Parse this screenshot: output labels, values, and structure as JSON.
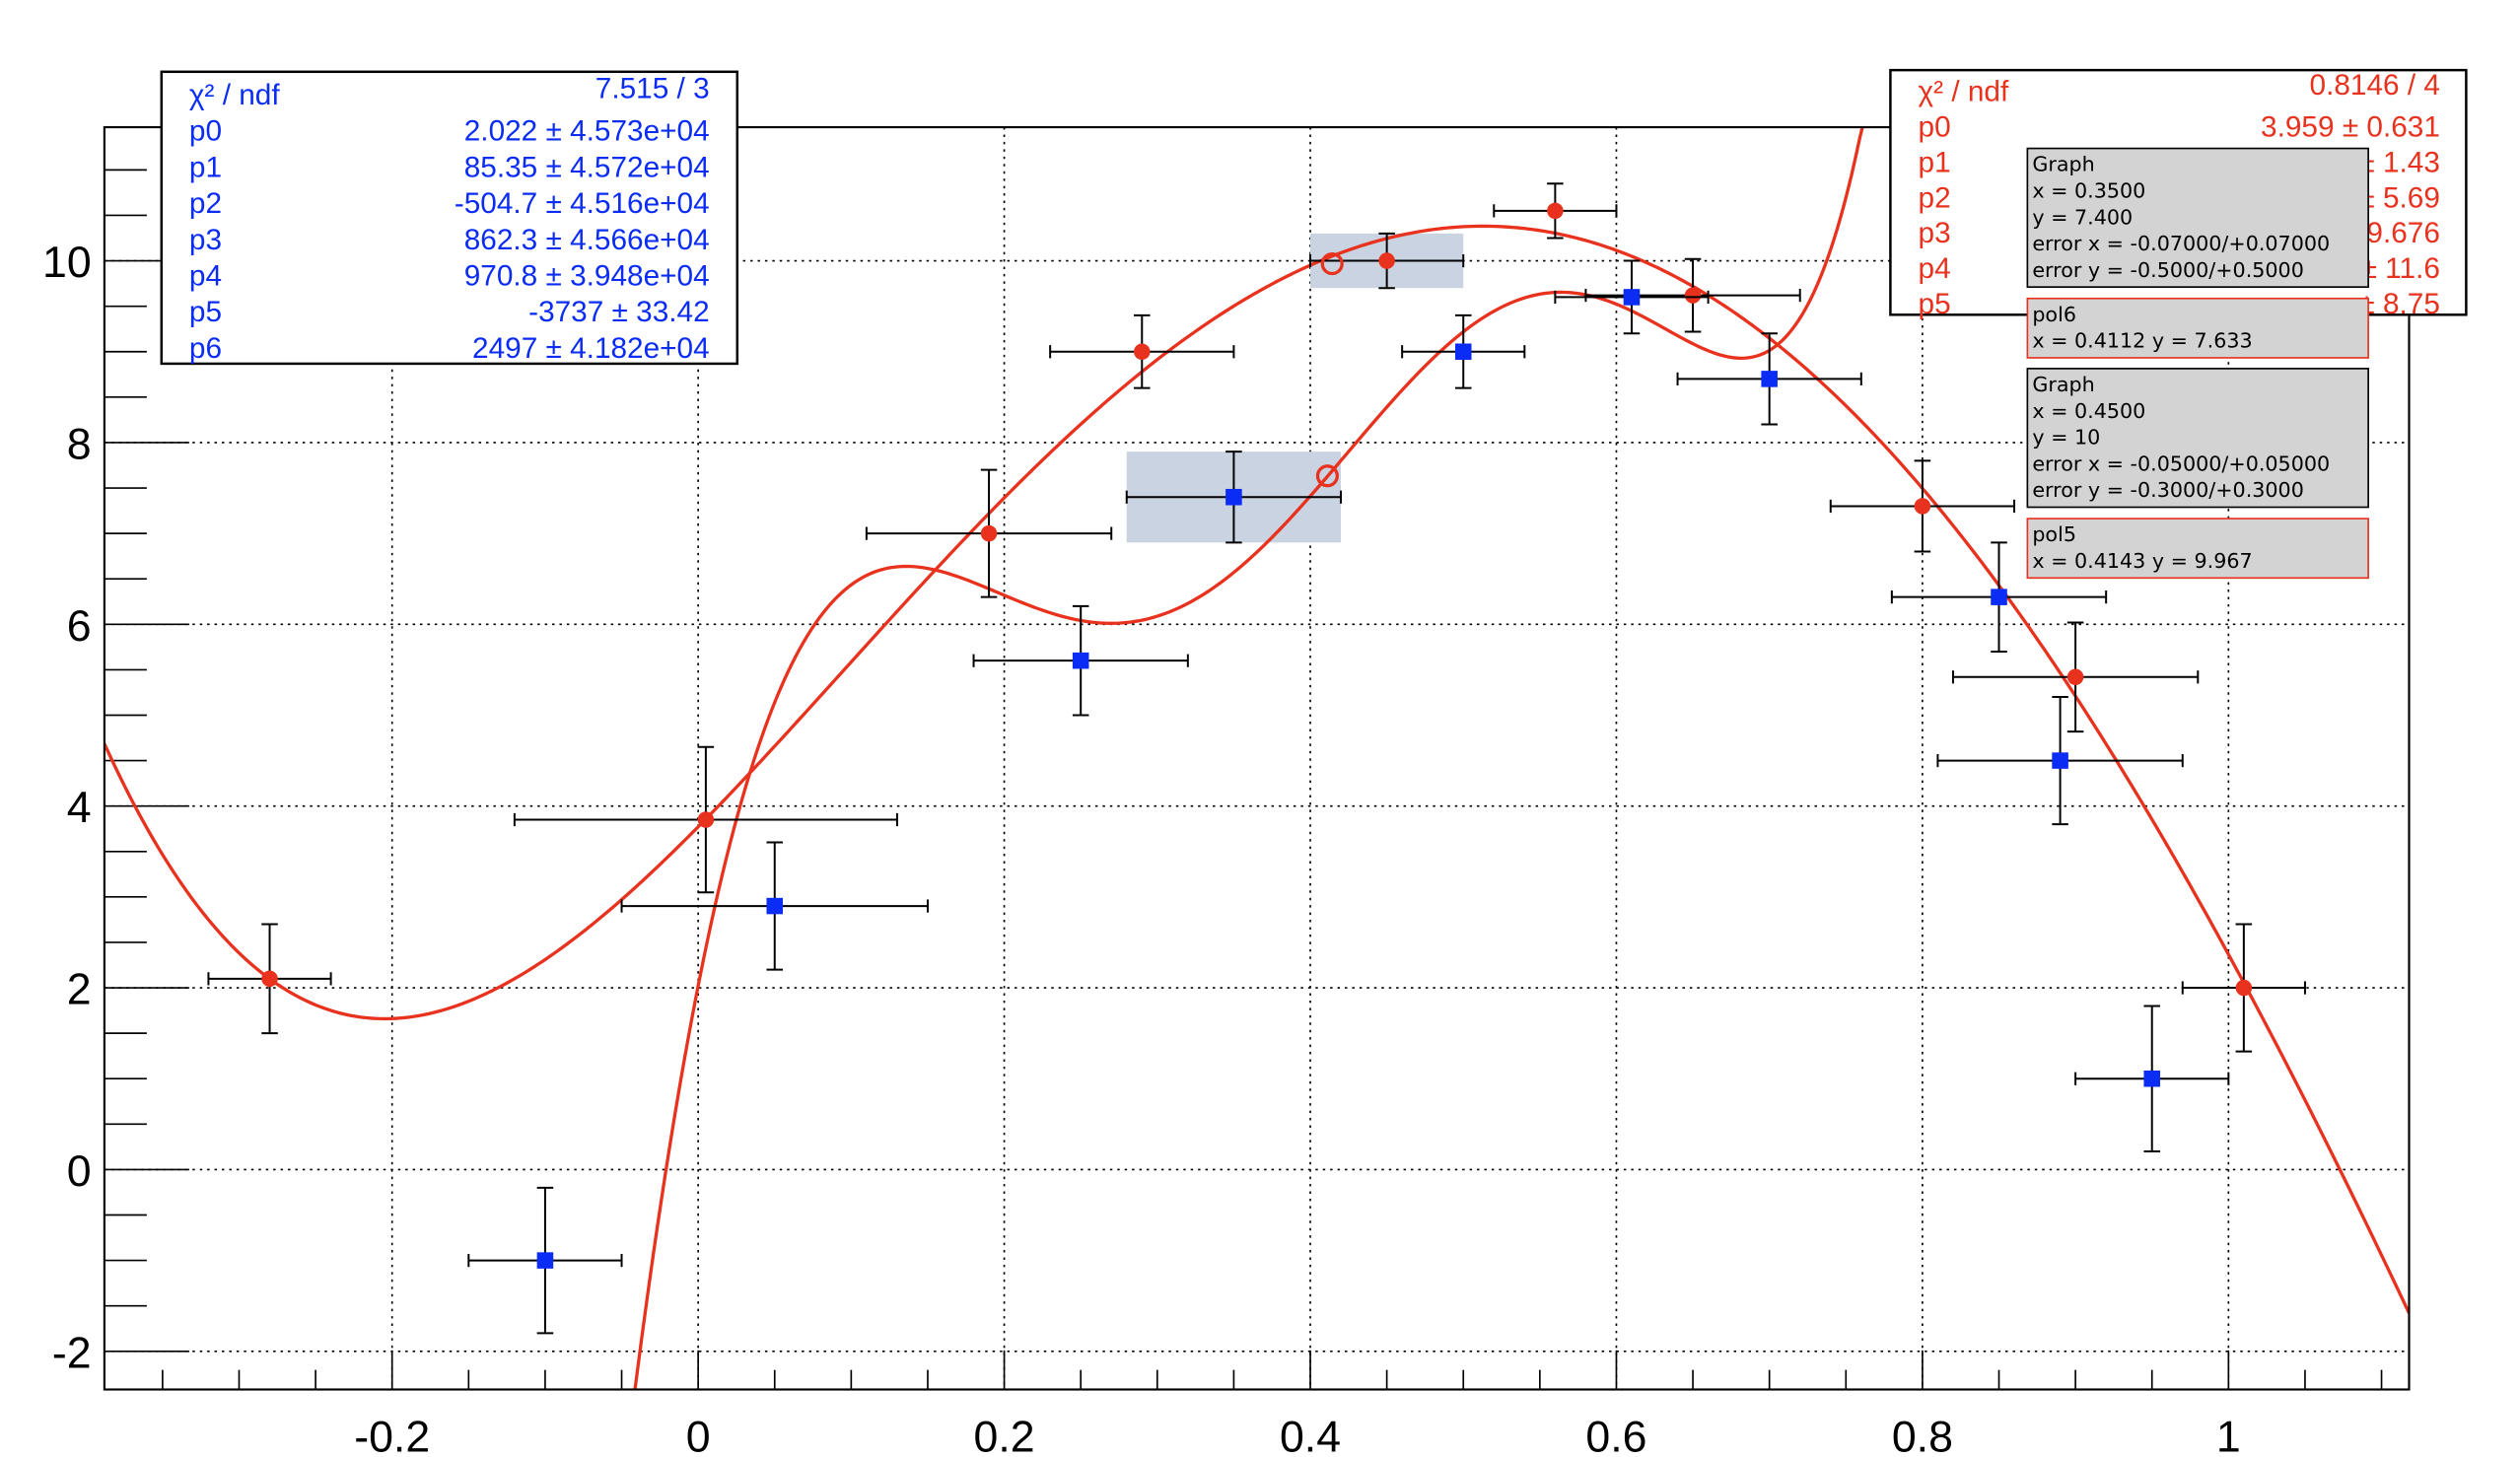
{
  "chart_data": {
    "type": "scatter",
    "xlim": [
      -0.388,
      1.118
    ],
    "ylim": [
      -2.42,
      11.47
    ],
    "grid": true,
    "x_ticks": [
      "-0.2",
      "0",
      "0.2",
      "0.4",
      "0.6",
      "0.8",
      "1"
    ],
    "y_ticks": [
      "-2",
      "0",
      "2",
      "4",
      "6",
      "8",
      "10"
    ],
    "series": [
      {
        "marker": "circle",
        "color": "#e8321e",
        "x": [
          -0.28,
          0.005,
          0.19,
          0.29,
          0.45,
          0.56,
          0.65,
          0.8,
          0.9,
          1.01
        ],
        "y": [
          2.1,
          3.85,
          7.0,
          9.0,
          10.0,
          10.55,
          9.62,
          7.3,
          5.42,
          2.0
        ],
        "ex": [
          0.04,
          0.125,
          0.08,
          0.06,
          0.05,
          0.04,
          0.07,
          0.06,
          0.08,
          0.04
        ],
        "ey": [
          0.6,
          0.8,
          0.7,
          0.4,
          0.3,
          0.3,
          0.4,
          0.5,
          0.6,
          0.7
        ]
      },
      {
        "marker": "square",
        "color": "#0a2cf5",
        "x": [
          -0.1,
          0.05,
          0.25,
          0.35,
          0.5,
          0.61,
          0.7,
          0.85,
          0.89,
          0.95
        ],
        "y": [
          -1.0,
          2.9,
          5.6,
          7.4,
          9.0,
          9.6,
          8.7,
          6.3,
          4.5,
          1.0
        ],
        "ex": [
          0.05,
          0.1,
          0.07,
          0.07,
          0.04,
          0.05,
          0.06,
          0.07,
          0.08,
          0.05
        ],
        "ey": [
          0.8,
          0.7,
          0.6,
          0.5,
          0.4,
          0.4,
          0.5,
          0.6,
          0.7,
          0.8
        ]
      }
    ],
    "fits": [
      {
        "name": "pol6",
        "color": "#e8321e",
        "params": [
          2.022,
          85.35,
          -504.7,
          862.3,
          970.8,
          -3737,
          2497
        ]
      },
      {
        "name": "pol5",
        "color": "#e8321e",
        "fit_to_series": 0,
        "p0": 3.959
      }
    ],
    "highlights": [
      {
        "x": [
          0.28,
          0.42
        ],
        "y": [
          6.9,
          7.9
        ]
      },
      {
        "x": [
          0.4,
          0.5
        ],
        "y": [
          9.7,
          10.3
        ]
      }
    ],
    "markers_open": [
      {
        "x": 0.4112,
        "y": 7.633
      },
      {
        "x": 0.4143,
        "y": 9.967
      }
    ]
  },
  "stats_blue": {
    "color": "#0a2cf5",
    "rows": [
      {
        "label": "χ² / ndf",
        "value": "7.515 / 3"
      },
      {
        "label": "p0",
        "value": "2.022 ± 4.573e+04"
      },
      {
        "label": "p1",
        "value": "85.35 ± 4.572e+04"
      },
      {
        "label": "p2",
        "value": "-504.7 ± 4.516e+04"
      },
      {
        "label": "p3",
        "value": "862.3 ± 4.566e+04"
      },
      {
        "label": "p4",
        "value": "970.8 ± 3.948e+04"
      },
      {
        "label": "p5",
        "value": "-3737 ± 33.42"
      },
      {
        "label": "p6",
        "value": "2497 ± 4.182e+04"
      }
    ]
  },
  "stats_red": {
    "color": "#e8321e",
    "rows": [
      {
        "label": "χ² / ndf",
        "value": "0.8146 / 4"
      },
      {
        "label": "p0",
        "value": "3.959 ± 0.631"
      },
      {
        "label": "p1",
        "value": "± 1.43"
      },
      {
        "label": "p2",
        "value": "± 5.69"
      },
      {
        "label": "p3",
        "value": "9.676"
      },
      {
        "label": "p4",
        "value": "± 11.6"
      },
      {
        "label": "p5",
        "value": "± 8.75"
      }
    ]
  },
  "tooltips": [
    {
      "lines": [
        "Graph",
        "x = 0.3500",
        "y = 7.400",
        "error x = -0.07000/+0.07000",
        "error y = -0.5000/+0.5000"
      ],
      "border": "#000000"
    },
    {
      "lines": [
        "pol6",
        "x = 0.4112 y = 7.633"
      ],
      "border": "#e8321e"
    },
    {
      "lines": [
        "Graph",
        "x = 0.4500",
        "y = 10",
        "error x = -0.05000/+0.05000",
        "error y = -0.3000/+0.3000"
      ],
      "border": "#000000"
    },
    {
      "lines": [
        "pol5",
        "x = 0.4143 y = 9.967"
      ],
      "border": "#e8321e"
    }
  ]
}
